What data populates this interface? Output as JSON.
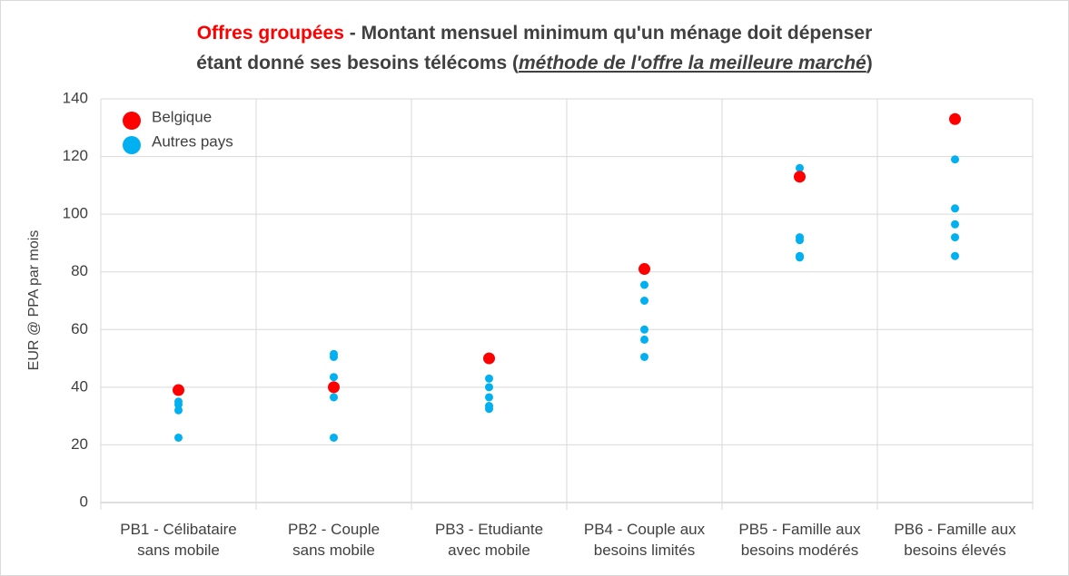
{
  "chart_data": {
    "type": "scatter",
    "title_parts": [
      "Offres groupées",
      " - Montant mensuel minimum qu'un ménage doit dépenser",
      "étant donné ses besoins télécoms (",
      "méthode de l'offre la meilleure marché",
      ")"
    ],
    "y_label": "EUR @ PPA par mois",
    "categories": [
      "PB1 - Célibataire\nsans mobile",
      "PB2 - Couple\nsans mobile",
      "PB3 - Etudiante\navec mobile",
      "PB4 - Couple aux\nbesoins limités",
      "PB5 - Famille aux\nbesoins modérés",
      "PB6 - Famille aux\nbesoins élevés"
    ],
    "series": [
      {
        "name": "Belgique",
        "color": "#ff0000",
        "values": [
          39,
          40,
          50,
          81,
          113,
          133
        ]
      },
      {
        "name": "Autres pays",
        "color": "#00b0f0",
        "values": [
          [
            38.5,
            35,
            34,
            32,
            22.5
          ],
          [
            51.5,
            50.5,
            43.5,
            36.5,
            22.5
          ],
          [
            43,
            40,
            36.5,
            33.5,
            32.5
          ],
          [
            75.5,
            70,
            60,
            56.5,
            50.5
          ],
          [
            116,
            92,
            91,
            85.5,
            85
          ],
          [
            119,
            102,
            96.5,
            92,
            85.5
          ]
        ]
      }
    ],
    "ylim": [
      0,
      140
    ],
    "yticks": [
      0,
      20,
      40,
      60,
      80,
      100,
      120,
      140
    ],
    "grid": true,
    "legend": "top-left"
  }
}
